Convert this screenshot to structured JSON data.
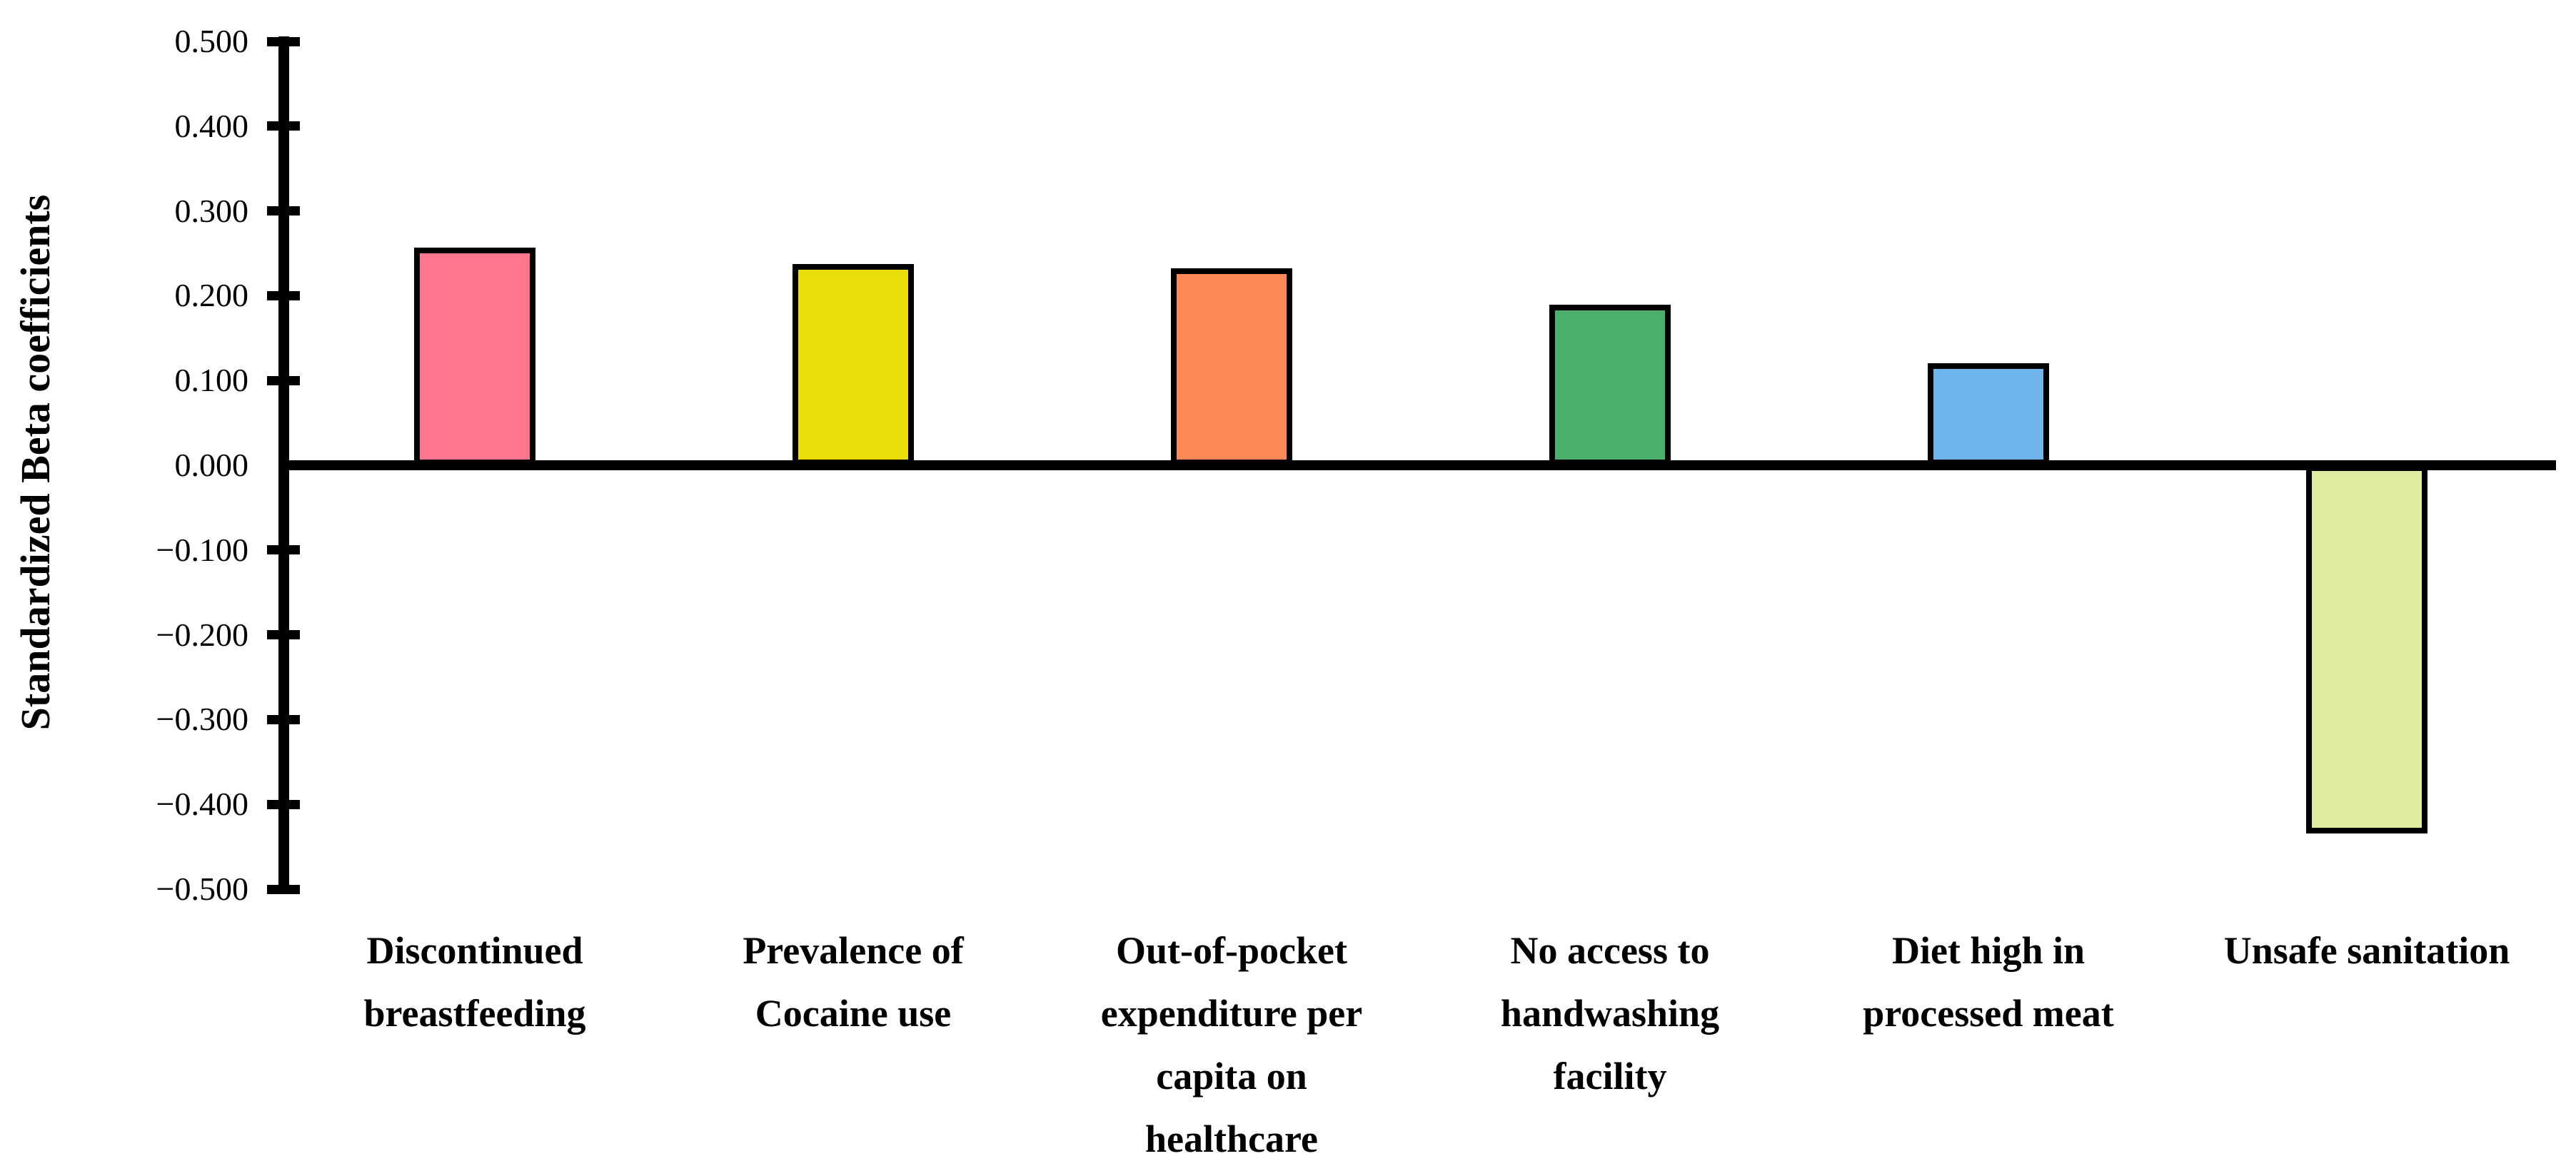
{
  "chart_data": {
    "type": "bar",
    "title": "",
    "ylabel": "Standardized Beta coefficients",
    "xlabel": "",
    "ylim": [
      -0.5,
      0.5
    ],
    "ytick_step": 0.1,
    "grid": false,
    "legend": "none",
    "categories": [
      "Discontinued\nbreastfeeding",
      "Prevalence of\nCocaine use",
      "Out-of-pocket\nexpenditure per\ncapita on\nhealthcare",
      "No access to\nhandwashing\nfacility",
      "Diet high in\nprocessed meat",
      "Unsafe sanitation"
    ],
    "values": [
      0.257,
      0.237,
      0.232,
      0.189,
      0.12,
      -0.434
    ],
    "bar_colors": [
      "#FC7690",
      "#EBDD08",
      "#FC8A59",
      "#4BB06C",
      "#6EB5ED",
      "#DFEB9E"
    ],
    "bar_edge_color": "#000000",
    "axis_color": "#000000",
    "background_color": "#FFFFFF",
    "yticks": [
      {
        "label": "0.500",
        "value": 0.5
      },
      {
        "label": "0.400",
        "value": 0.4
      },
      {
        "label": "0.300",
        "value": 0.3
      },
      {
        "label": "0.200",
        "value": 0.2
      },
      {
        "label": "0.100",
        "value": 0.1
      },
      {
        "label": "0.000",
        "value": 0.0
      },
      {
        "label": "−0.100",
        "value": -0.1
      },
      {
        "label": "−0.200",
        "value": -0.2
      },
      {
        "label": "−0.300",
        "value": -0.3
      },
      {
        "label": "−0.400",
        "value": -0.4
      },
      {
        "label": "−0.500",
        "value": -0.5
      }
    ]
  }
}
